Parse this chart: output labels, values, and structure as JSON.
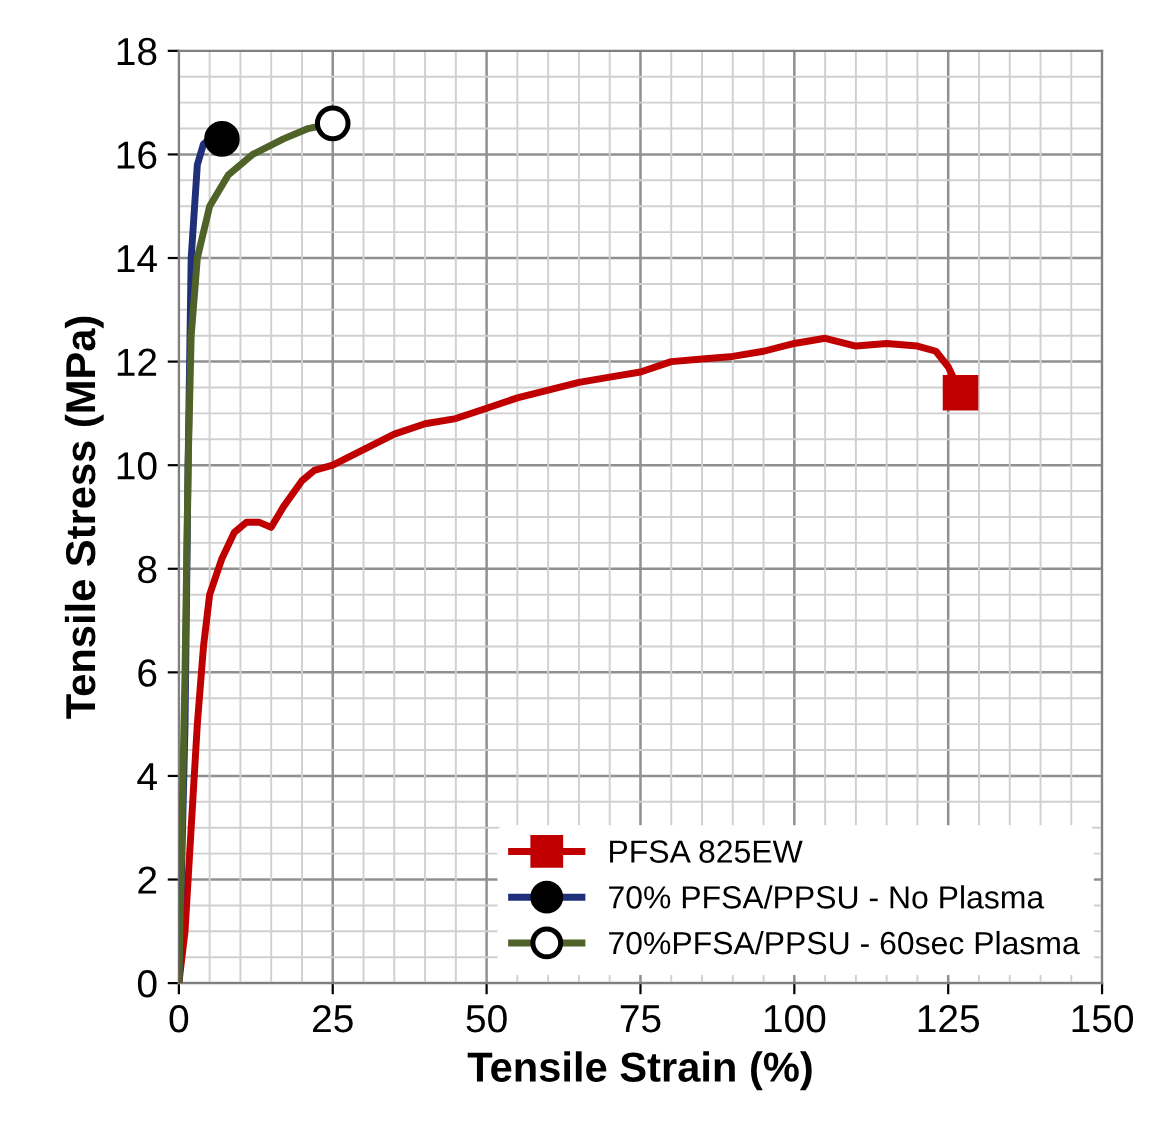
{
  "chart_data": {
    "type": "line",
    "xlabel": "Tensile Strain (%)",
    "ylabel": "Tensile Stress (MPa)",
    "xlim": [
      0,
      150
    ],
    "xticks": [
      0,
      25,
      50,
      75,
      100,
      125,
      150
    ],
    "ylim": [
      0,
      18
    ],
    "yticks": [
      0,
      2,
      4,
      6,
      8,
      10,
      12,
      14,
      16,
      18
    ],
    "grid": true,
    "legend": "bottom right",
    "series": [
      {
        "name": "PFSA 825EW",
        "color": "#c00000",
        "x": [
          0,
          1,
          2,
          3,
          4,
          5,
          7,
          9,
          11,
          13,
          15,
          17,
          20,
          22,
          25,
          30,
          35,
          40,
          45,
          50,
          55,
          60,
          65,
          70,
          75,
          80,
          85,
          90,
          95,
          100,
          105,
          110,
          115,
          120,
          123,
          125,
          127
        ],
        "values": [
          0,
          1,
          3,
          5,
          6.5,
          7.5,
          8.2,
          8.7,
          8.9,
          8.9,
          8.8,
          9.2,
          9.7,
          9.9,
          10,
          10.3,
          10.6,
          10.8,
          10.9,
          11.1,
          11.3,
          11.45,
          11.6,
          11.7,
          11.8,
          12,
          12.05,
          12.1,
          12.2,
          12.35,
          12.45,
          12.3,
          12.35,
          12.3,
          12.2,
          11.9,
          11.4
        ]
      },
      {
        "type": "scatter",
        "marker": "square",
        "color": "#c00000",
        "x": [
          127
        ],
        "values": [
          11.4
        ]
      },
      {
        "name": "70% PFSA/PPSU - No Plasma",
        "color": "#1f2f7a",
        "x": [
          0,
          1,
          1.5,
          2,
          3,
          4,
          5,
          7
        ],
        "values": [
          0,
          5,
          10,
          14,
          15.8,
          16.2,
          16.3,
          16.3
        ]
      },
      {
        "type": "scatter",
        "marker": "circle",
        "color": "#000000",
        "x": [
          7
        ],
        "values": [
          16.3
        ]
      },
      {
        "name": "70%PFSA/PPSU - 60sec Plasma",
        "color": "#4f6228",
        "x": [
          0,
          1,
          1.5,
          2,
          3,
          5,
          8,
          12,
          17,
          21,
          25
        ],
        "values": [
          0,
          6,
          10,
          12.5,
          14,
          15,
          15.6,
          16,
          16.3,
          16.5,
          16.6
        ]
      },
      {
        "type": "scatter",
        "marker": "circle",
        "color": "#ffffff",
        "x": [
          25
        ],
        "values": [
          16.6
        ]
      }
    ]
  }
}
